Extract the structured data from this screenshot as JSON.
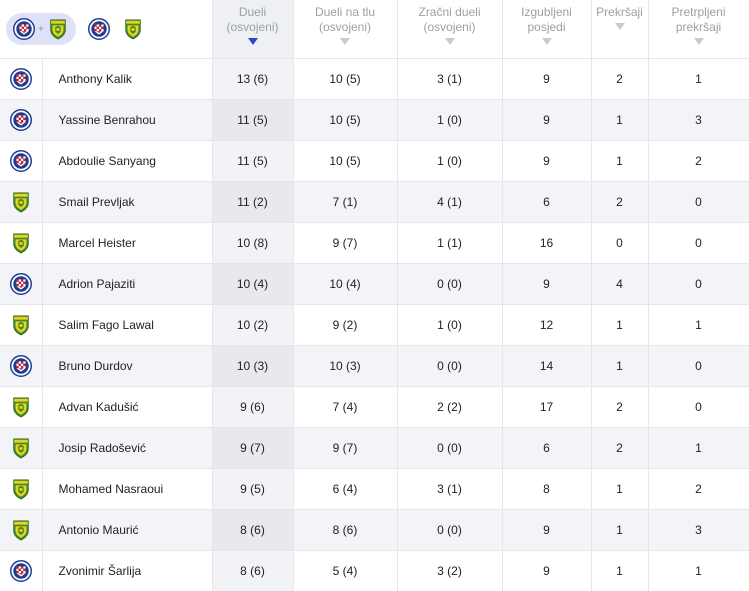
{
  "filters": {
    "combined_label": "+",
    "hajduk_name": "Hajduk Split",
    "istra_name": "Istra 1961"
  },
  "columns": {
    "duels": "Dueli (osvojeni)",
    "ground_duels": "Dueli na tlu (osvojeni)",
    "aerial_duels": "Zračni dueli (osvojeni)",
    "possession_lost": "Izgubljeni posjedi",
    "fouls": "Prekršaji",
    "was_fouled": "Pretrpljeni prekršaji"
  },
  "sort": {
    "column": "duels",
    "direction": "desc"
  },
  "colors": {
    "accent": "#2f43d8",
    "hajduk_blue": "#1e3b8f",
    "hajduk_red": "#d42027",
    "istra_green": "#3f8a2c",
    "istra_yellow": "#e8d21d"
  },
  "players": [
    {
      "team": "hajduk",
      "name": "Anthony Kalik",
      "duels": "13 (6)",
      "ground": "10 (5)",
      "aerial": "3 (1)",
      "poss": "9",
      "fouls": "2",
      "fouled": "1"
    },
    {
      "team": "hajduk",
      "name": "Yassine Benrahou",
      "duels": "11 (5)",
      "ground": "10 (5)",
      "aerial": "1 (0)",
      "poss": "9",
      "fouls": "1",
      "fouled": "3"
    },
    {
      "team": "hajduk",
      "name": "Abdoulie Sanyang",
      "duels": "11 (5)",
      "ground": "10 (5)",
      "aerial": "1 (0)",
      "poss": "9",
      "fouls": "1",
      "fouled": "2"
    },
    {
      "team": "istra",
      "name": "Smail Prevljak",
      "duels": "11 (2)",
      "ground": "7 (1)",
      "aerial": "4 (1)",
      "poss": "6",
      "fouls": "2",
      "fouled": "0"
    },
    {
      "team": "istra",
      "name": "Marcel Heister",
      "duels": "10 (8)",
      "ground": "9 (7)",
      "aerial": "1 (1)",
      "poss": "16",
      "fouls": "0",
      "fouled": "0"
    },
    {
      "team": "hajduk",
      "name": "Adrion Pajaziti",
      "duels": "10 (4)",
      "ground": "10 (4)",
      "aerial": "0 (0)",
      "poss": "9",
      "fouls": "4",
      "fouled": "0"
    },
    {
      "team": "istra",
      "name": "Salim Fago Lawal",
      "duels": "10 (2)",
      "ground": "9 (2)",
      "aerial": "1 (0)",
      "poss": "12",
      "fouls": "1",
      "fouled": "1"
    },
    {
      "team": "hajduk",
      "name": "Bruno Durdov",
      "duels": "10 (3)",
      "ground": "10 (3)",
      "aerial": "0 (0)",
      "poss": "14",
      "fouls": "1",
      "fouled": "0"
    },
    {
      "team": "istra",
      "name": "Advan Kadušić",
      "duels": "9 (6)",
      "ground": "7 (4)",
      "aerial": "2 (2)",
      "poss": "17",
      "fouls": "2",
      "fouled": "0"
    },
    {
      "team": "istra",
      "name": "Josip Radošević",
      "duels": "9 (7)",
      "ground": "9 (7)",
      "aerial": "0 (0)",
      "poss": "6",
      "fouls": "2",
      "fouled": "1"
    },
    {
      "team": "istra",
      "name": "Mohamed Nasraoui",
      "duels": "9 (5)",
      "ground": "6 (4)",
      "aerial": "3 (1)",
      "poss": "8",
      "fouls": "1",
      "fouled": "2"
    },
    {
      "team": "istra",
      "name": "Antonio Maurić",
      "duels": "8 (6)",
      "ground": "8 (6)",
      "aerial": "0 (0)",
      "poss": "9",
      "fouls": "1",
      "fouled": "3"
    },
    {
      "team": "hajduk",
      "name": "Zvonimir Šarlija",
      "duels": "8 (6)",
      "ground": "5 (4)",
      "aerial": "3 (2)",
      "poss": "9",
      "fouls": "1",
      "fouled": "1"
    }
  ]
}
